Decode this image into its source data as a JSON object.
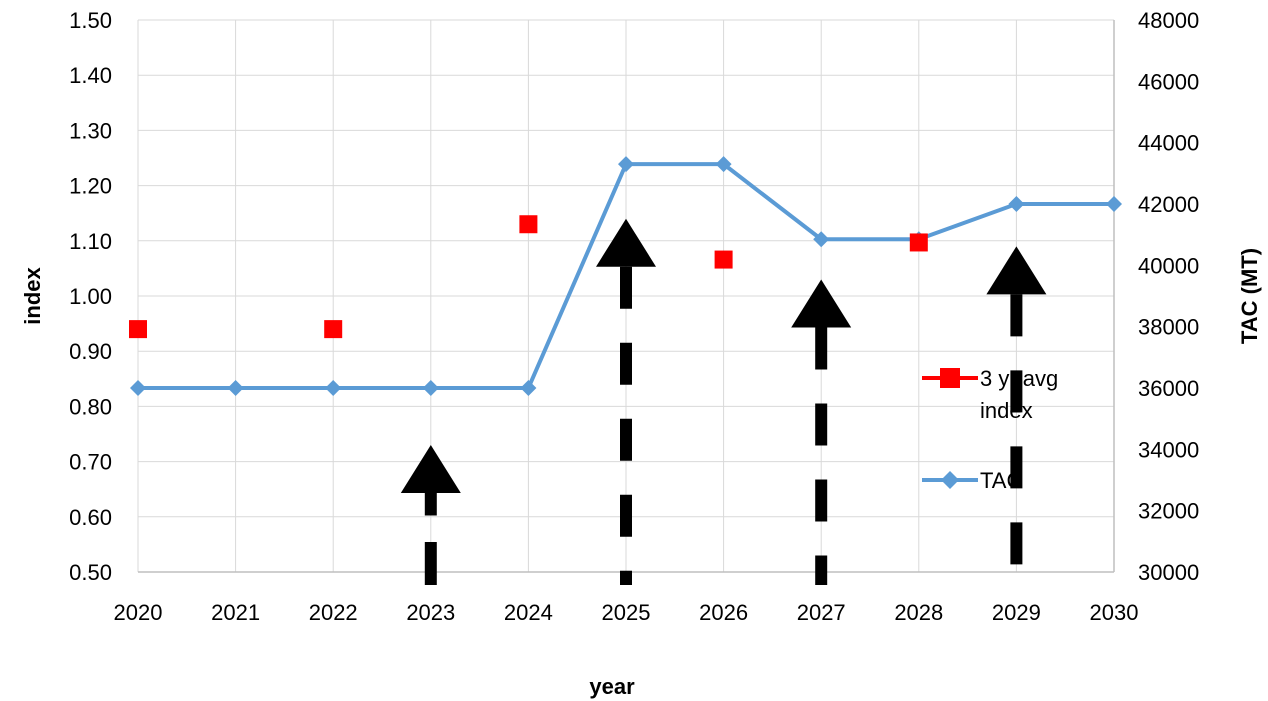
{
  "chart_data": {
    "type": "line",
    "title": "",
    "xlabel": "year",
    "ylabel_left": "index",
    "ylabel_right": "TAC (MT)",
    "x": [
      2020,
      2021,
      2022,
      2023,
      2024,
      2025,
      2026,
      2027,
      2028,
      2029,
      2030
    ],
    "x_ticks": [
      "2020",
      "2021",
      "2022",
      "2023",
      "2024",
      "2025",
      "2026",
      "2027",
      "2028",
      "2029",
      "2030"
    ],
    "ylim_left": [
      0.5,
      1.5
    ],
    "y_ticks_left": [
      "0.50",
      "0.60",
      "0.70",
      "0.80",
      "0.90",
      "1.00",
      "1.10",
      "1.20",
      "1.30",
      "1.40",
      "1.50"
    ],
    "ylim_right": [
      30000,
      48000
    ],
    "y_ticks_right": [
      "30000",
      "32000",
      "34000",
      "36000",
      "38000",
      "40000",
      "42000",
      "44000",
      "46000",
      "48000"
    ],
    "grid": true,
    "legend_position": "right",
    "series": [
      {
        "name": "3 yr avg index",
        "axis": "left",
        "style": "markers",
        "marker": "square",
        "color": "#ff0000",
        "x": [
          2020,
          2022,
          2024,
          2026,
          2028
        ],
        "values": [
          0.94,
          0.94,
          1.13,
          1.066,
          1.097
        ]
      },
      {
        "name": "TAC",
        "axis": "right",
        "style": "line+markers",
        "marker": "diamond",
        "color": "#5b9bd5",
        "x": [
          2020,
          2021,
          2022,
          2023,
          2024,
          2025,
          2026,
          2027,
          2028,
          2029,
          2030
        ],
        "values": [
          36000,
          36000,
          36000,
          36000,
          36000,
          43300,
          43300,
          40850,
          40850,
          42000,
          42000
        ]
      }
    ],
    "annotations": [
      {
        "type": "arrow",
        "x": 2023,
        "solid_to": 0.711,
        "tip": 0.73,
        "dash_pattern": "solid-top"
      },
      {
        "type": "arrow",
        "x": 2025,
        "tip": 1.14,
        "dash_pattern": "dashed"
      },
      {
        "type": "arrow",
        "x": 2027,
        "tip": 1.03,
        "dash_pattern": "dashed"
      },
      {
        "type": "arrow",
        "x": 2029,
        "tip": 1.09,
        "dash_pattern": "dashed"
      }
    ]
  }
}
